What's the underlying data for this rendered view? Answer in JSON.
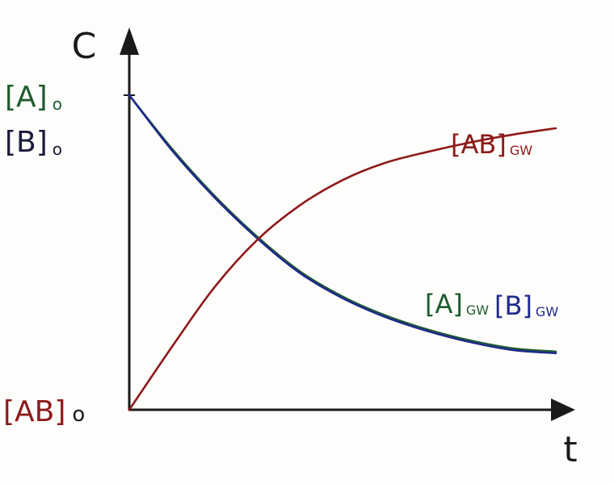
{
  "chart_data": {
    "type": "line",
    "title": "",
    "xlabel": "t",
    "ylabel": "C",
    "grid": false,
    "xlim": [
      0,
      10
    ],
    "ylim": [
      0,
      10
    ],
    "y_tick_labels": {
      "A0": {
        "main": "[A]",
        "sub": "o"
      },
      "B0": {
        "main": "[B]",
        "sub": "o"
      },
      "AB0": {
        "main": "[AB]",
        "sub": "o"
      }
    },
    "series": [
      {
        "name": "[A]GW",
        "label_main": "[A]",
        "label_sub": "GW",
        "color": "#1f5c2e",
        "x": [
          0,
          1,
          2,
          3,
          4,
          5,
          6,
          7,
          8,
          9,
          10
        ],
        "y": [
          10,
          8.3,
          6.8,
          5.5,
          4.4,
          3.6,
          3.0,
          2.55,
          2.2,
          1.95,
          1.85
        ]
      },
      {
        "name": "[B]GW",
        "label_main": "[B]",
        "label_sub": "GW",
        "color": "#1f2a8c",
        "x": [
          0,
          1,
          2,
          3,
          4,
          5,
          6,
          7,
          8,
          9,
          10
        ],
        "y": [
          10,
          8.25,
          6.75,
          5.45,
          4.35,
          3.55,
          2.95,
          2.5,
          2.15,
          1.9,
          1.8
        ]
      },
      {
        "name": "[AB]GW",
        "label_main": "[AB]",
        "label_sub": "GW",
        "color": "#8e1a1a",
        "x": [
          0,
          1,
          2,
          3,
          4,
          5,
          6,
          7,
          8,
          9,
          10
        ],
        "y": [
          0,
          2.0,
          3.9,
          5.4,
          6.5,
          7.3,
          7.85,
          8.2,
          8.5,
          8.75,
          8.95
        ]
      }
    ],
    "colors": {
      "axis": "#1a1a1a",
      "A": "#1f5c2e",
      "B": "#1f2a8c",
      "AB": "#8e1a1a"
    }
  }
}
